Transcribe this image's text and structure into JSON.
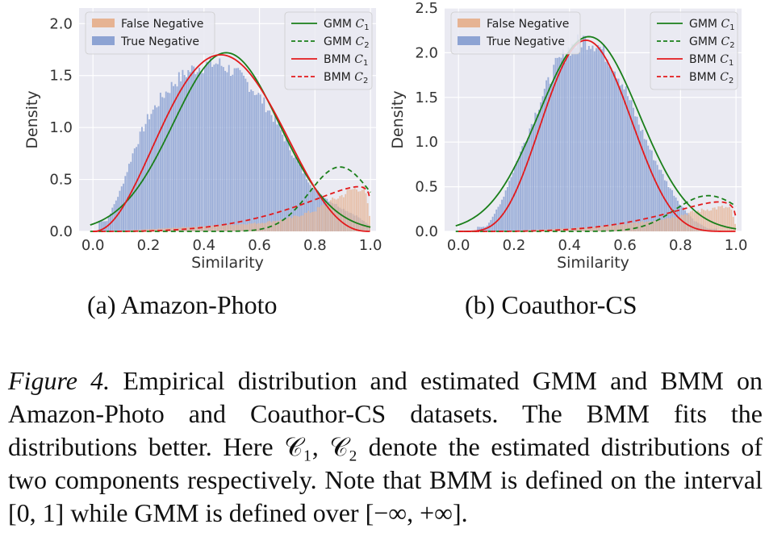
{
  "colors": {
    "false_negative": "#e6b393",
    "true_negative": "#8da3d3",
    "gmm": "#1a7f1a",
    "bmm": "#e31a1c"
  },
  "legend": {
    "false_negative": "False Negative",
    "true_negative": "True Negative",
    "gmm_c1": "GMM C1",
    "gmm_c2": "GMM C2",
    "bmm_c1": "BMM C1",
    "bmm_c2": "BMM C2"
  },
  "subcaptions": {
    "a": "(a)  Amazon-Photo",
    "b": "(b)  Coauthor-CS"
  },
  "caption": {
    "label": "Figure 4.",
    "text": " Empirical distribution and estimated GMM and BMM on Amazon-Photo and Coauthor-CS datasets. The BMM fits the distributions better. Here 𝒞₁, 𝒞₂ denote the estimated distributions of two components respectively. Note that BMM is defined on the interval [0, 1] while GMM is defined over [−∞, +∞]."
  },
  "chart_data": [
    {
      "type": "bar",
      "panel": "a",
      "xlabel": "Similarity",
      "ylabel": "Density",
      "xlim": [
        -0.05,
        1.02
      ],
      "ylim": [
        0,
        2.15
      ],
      "xticks": [
        "0.0",
        "0.2",
        "0.4",
        "0.6",
        "0.8",
        "1.0"
      ],
      "yticks": [
        "0.0",
        "0.5",
        "1.0",
        "1.5",
        "2.0"
      ],
      "legend_left": "top-left",
      "legend_right": "top-right",
      "true_negative": {
        "x": [
          0.05,
          0.1,
          0.15,
          0.2,
          0.25,
          0.3,
          0.35,
          0.4,
          0.45,
          0.5,
          0.55,
          0.6,
          0.65,
          0.7,
          0.75,
          0.8,
          0.85,
          0.9,
          0.95,
          1.0
        ],
        "density": [
          0.1,
          0.4,
          0.8,
          1.1,
          1.3,
          1.45,
          1.55,
          1.6,
          1.62,
          1.55,
          1.45,
          1.3,
          1.1,
          0.85,
          0.6,
          0.4,
          0.3,
          0.22,
          0.15,
          0.05
        ]
      },
      "false_negative": {
        "x": [
          0.05,
          0.2,
          0.4,
          0.6,
          0.7,
          0.8,
          0.85,
          0.9,
          0.93,
          0.96,
          0.98,
          1.0
        ],
        "density": [
          0.0,
          0.02,
          0.05,
          0.08,
          0.12,
          0.2,
          0.28,
          0.35,
          0.4,
          0.42,
          0.4,
          0.1
        ]
      },
      "series": [
        {
          "name": "GMM C1",
          "family": "normal",
          "mean": 0.48,
          "sd": 0.19,
          "peak": 1.72
        },
        {
          "name": "GMM C2",
          "family": "normal",
          "mean": 0.89,
          "sd": 0.11,
          "peak": 0.62
        },
        {
          "name": "BMM C1",
          "family": "beta",
          "a": 3.3,
          "b": 3.7,
          "peak": 1.7
        },
        {
          "name": "BMM C2",
          "family": "beta",
          "a": 4.2,
          "b": 1.15,
          "peak": 0.43
        }
      ]
    },
    {
      "type": "bar",
      "panel": "b",
      "xlabel": "Similarity",
      "ylabel": "Density",
      "xlim": [
        -0.05,
        1.02
      ],
      "ylim": [
        0,
        2.5
      ],
      "xticks": [
        "0.0",
        "0.2",
        "0.4",
        "0.6",
        "0.8",
        "1.0"
      ],
      "yticks": [
        "0.0",
        "0.5",
        "1.0",
        "1.5",
        "2.0",
        "2.5"
      ],
      "legend_left": "top-left",
      "legend_right": "top-right",
      "true_negative": {
        "x": [
          0.1,
          0.15,
          0.2,
          0.25,
          0.3,
          0.35,
          0.4,
          0.45,
          0.5,
          0.55,
          0.6,
          0.65,
          0.7,
          0.75,
          0.8,
          0.85,
          0.9
        ],
        "density": [
          0.05,
          0.3,
          0.7,
          1.1,
          1.5,
          1.85,
          2.05,
          2.15,
          2.1,
          1.9,
          1.6,
          1.2,
          0.85,
          0.55,
          0.3,
          0.12,
          0.03
        ]
      },
      "false_negative": {
        "x": [
          0.1,
          0.3,
          0.5,
          0.6,
          0.7,
          0.8,
          0.85,
          0.9,
          0.95,
          0.98,
          1.0
        ],
        "density": [
          0.0,
          0.02,
          0.05,
          0.08,
          0.12,
          0.18,
          0.22,
          0.25,
          0.27,
          0.26,
          0.05
        ]
      },
      "series": [
        {
          "name": "GMM C1",
          "family": "normal",
          "mean": 0.47,
          "sd": 0.18,
          "peak": 2.18
        },
        {
          "name": "GMM C2",
          "family": "normal",
          "mean": 0.9,
          "sd": 0.12,
          "peak": 0.4
        },
        {
          "name": "BMM C1",
          "family": "beta",
          "a": 5.5,
          "b": 6.3,
          "peak": 2.14
        },
        {
          "name": "BMM C2",
          "family": "beta",
          "a": 4.8,
          "b": 1.25,
          "peak": 0.33
        }
      ]
    }
  ]
}
